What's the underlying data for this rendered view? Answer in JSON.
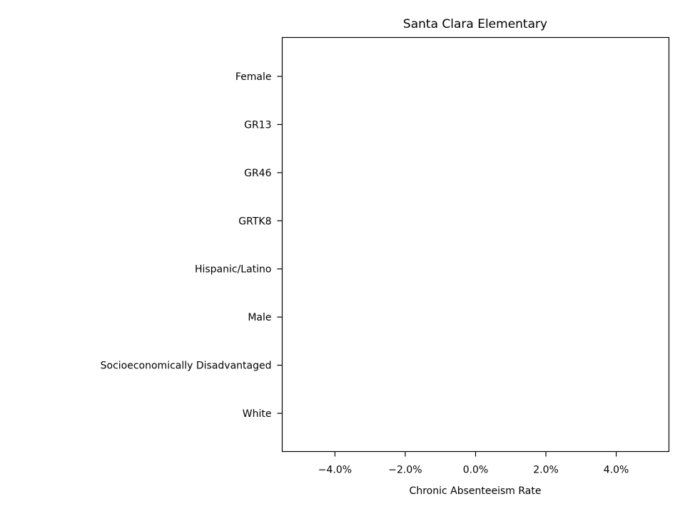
{
  "chart_data": {
    "type": "bar",
    "orientation": "horizontal",
    "title": "Santa Clara Elementary",
    "xlabel": "Chronic Absenteeism Rate",
    "ylabel": "",
    "categories": [
      "Female",
      "GR13",
      "GR46",
      "GRTK8",
      "Hispanic/Latino",
      "Male",
      "Socioeconomically Disadvantaged",
      "White"
    ],
    "values": [
      0,
      0,
      0,
      0,
      0,
      0,
      0,
      0
    ],
    "xlim": [
      -5.5,
      5.5
    ],
    "xticks": [
      -4,
      -2,
      0,
      2,
      4
    ],
    "xtick_labels": [
      "−4.0%",
      "−2.0%",
      "0.0%",
      "2.0%",
      "4.0%"
    ],
    "grid": false,
    "colors": {
      "bar": "#1f77b4",
      "axis": "#000000",
      "background": "#ffffff"
    }
  }
}
